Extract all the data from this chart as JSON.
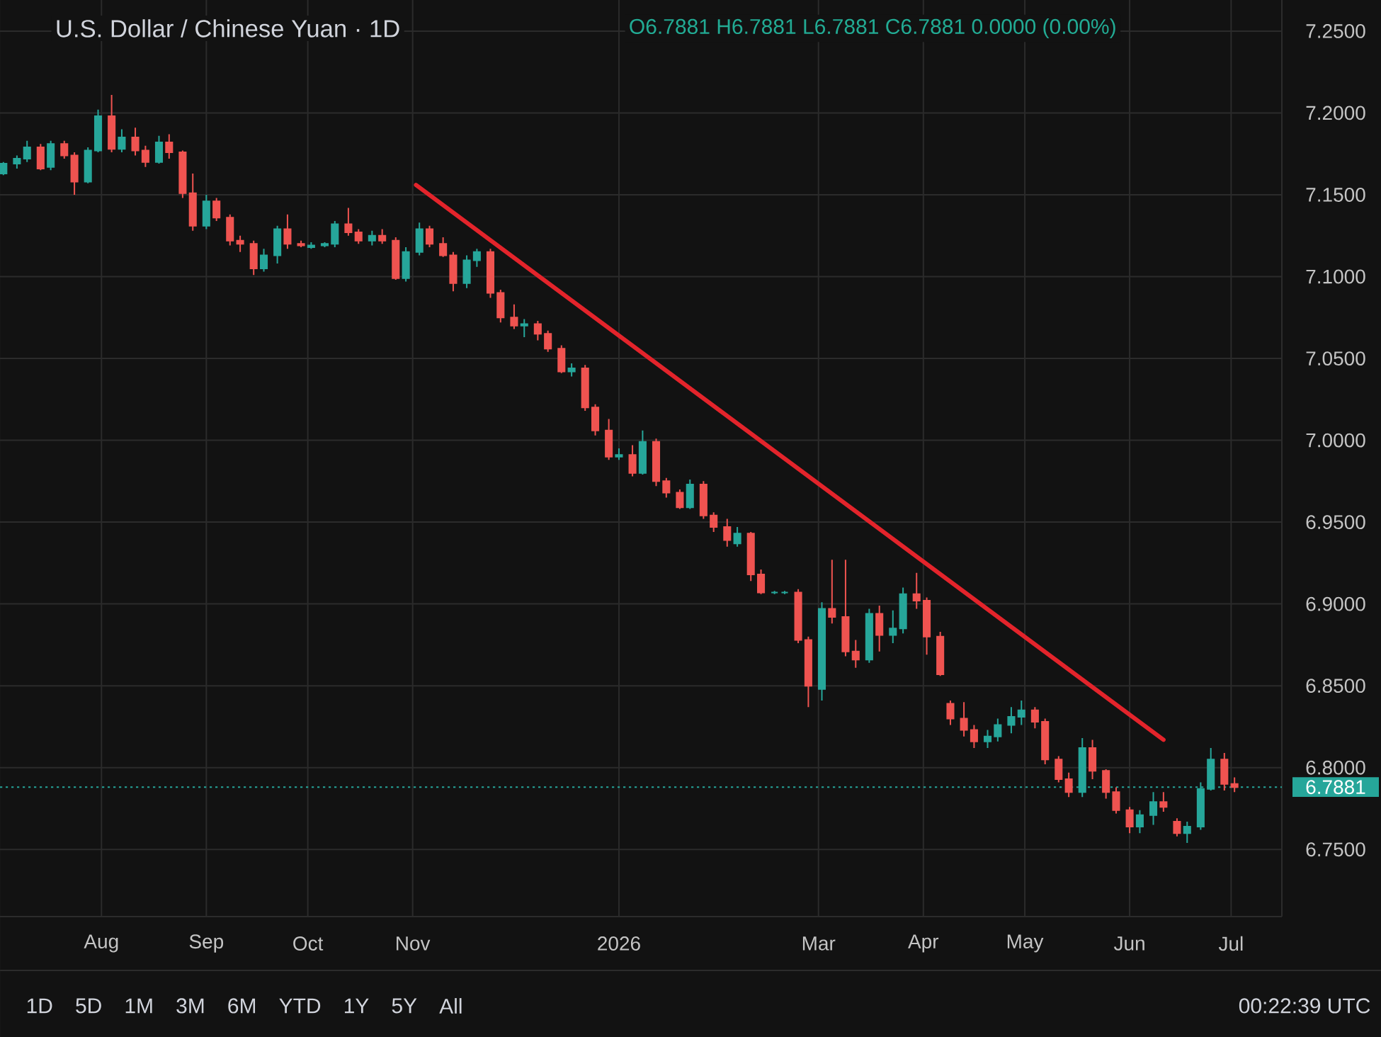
{
  "chart_data": {
    "type": "candlestick",
    "title": "U.S. Dollar / Chinese Yuan · 1D",
    "subtitle": "O6.7881 H6.7881 L6.7881 C6.7881 0.0000 (0.00%)",
    "annotations": [
      "1D",
      "5D",
      "1M",
      "3M",
      "6M",
      "YTD",
      "1Y",
      "5Y",
      "All",
      "00:22:39 UTC"
    ],
    "x": [
      "2025-07-03",
      "2025-07-07",
      "2025-07-10",
      "2025-07-14",
      "2025-07-17",
      "2025-07-21",
      "2025-07-24",
      "2025-07-28",
      "2025-07-31",
      "2025-08-04",
      "2025-08-07",
      "2025-08-11",
      "2025-08-14",
      "2025-08-18",
      "2025-08-21",
      "2025-08-25",
      "2025-08-28",
      "2025-09-01",
      "2025-09-04",
      "2025-09-08",
      "2025-09-11",
      "2025-09-15",
      "2025-09-18",
      "2025-09-22",
      "2025-09-25",
      "2025-09-29",
      "2025-10-02",
      "2025-10-06",
      "2025-10-09",
      "2025-10-13",
      "2025-10-16",
      "2025-10-20",
      "2025-10-23",
      "2025-10-27",
      "2025-10-30",
      "2025-11-03",
      "2025-11-06",
      "2025-11-10",
      "2025-11-13",
      "2025-11-17",
      "2025-11-20",
      "2025-11-24",
      "2025-11-27",
      "2025-12-01",
      "2025-12-04",
      "2025-12-08",
      "2025-12-11",
      "2025-12-15",
      "2025-12-18",
      "2025-12-22",
      "2025-12-25",
      "2025-12-29",
      "2026-01-01",
      "2026-01-05",
      "2026-01-08",
      "2026-01-12",
      "2026-01-15",
      "2026-01-19",
      "2026-01-22",
      "2026-01-26",
      "2026-01-29",
      "2026-02-02",
      "2026-02-05",
      "2026-02-09",
      "2026-02-12",
      "2026-02-16",
      "2026-02-19",
      "2026-02-23",
      "2026-02-26",
      "2026-03-02",
      "2026-03-05",
      "2026-03-09",
      "2026-03-12",
      "2026-03-16",
      "2026-03-19",
      "2026-03-23",
      "2026-03-26",
      "2026-03-30",
      "2026-04-02",
      "2026-04-06",
      "2026-04-09",
      "2026-04-13",
      "2026-04-16",
      "2026-04-20",
      "2026-04-23",
      "2026-04-27",
      "2026-04-30",
      "2026-05-04",
      "2026-05-07",
      "2026-05-11",
      "2026-05-14",
      "2026-05-18",
      "2026-05-21",
      "2026-05-25",
      "2026-05-28",
      "2026-06-01",
      "2026-06-04",
      "2026-06-08",
      "2026-06-11",
      "2026-06-15",
      "2026-06-18",
      "2026-06-22",
      "2026-06-25",
      "2026-06-29",
      "2026-07-02"
    ],
    "ohlc": [
      [
        7.163,
        7.17,
        7.162,
        7.169
      ],
      [
        7.169,
        7.174,
        7.166,
        7.172
      ],
      [
        7.172,
        7.183,
        7.17,
        7.179
      ],
      [
        7.179,
        7.181,
        7.165,
        7.166
      ],
      [
        7.167,
        7.183,
        7.165,
        7.181
      ],
      [
        7.181,
        7.183,
        7.172,
        7.174
      ],
      [
        7.174,
        7.176,
        7.15,
        7.158
      ],
      [
        7.158,
        7.179,
        7.157,
        7.177
      ],
      [
        7.177,
        7.202,
        7.176,
        7.198
      ],
      [
        7.198,
        7.211,
        7.176,
        7.178
      ],
      [
        7.178,
        7.19,
        7.176,
        7.185
      ],
      [
        7.185,
        7.191,
        7.174,
        7.177
      ],
      [
        7.177,
        7.18,
        7.167,
        7.17
      ],
      [
        7.17,
        7.186,
        7.169,
        7.182
      ],
      [
        7.182,
        7.187,
        7.172,
        7.176
      ],
      [
        7.176,
        7.177,
        7.148,
        7.151
      ],
      [
        7.151,
        7.163,
        7.128,
        7.131
      ],
      [
        7.131,
        7.15,
        7.129,
        7.146
      ],
      [
        7.146,
        7.148,
        7.134,
        7.136
      ],
      [
        7.136,
        7.138,
        7.119,
        7.122
      ],
      [
        7.122,
        7.125,
        7.115,
        7.12
      ],
      [
        7.12,
        7.122,
        7.101,
        7.105
      ],
      [
        7.105,
        7.117,
        7.103,
        7.113
      ],
      [
        7.113,
        7.131,
        7.108,
        7.129
      ],
      [
        7.129,
        7.138,
        7.117,
        7.12
      ],
      [
        7.12,
        7.122,
        7.118,
        7.119
      ],
      [
        7.118,
        7.121,
        7.117,
        7.119
      ],
      [
        7.119,
        7.121,
        7.118,
        7.12
      ],
      [
        7.12,
        7.134,
        7.118,
        7.132
      ],
      [
        7.132,
        7.142,
        7.125,
        7.127
      ],
      [
        7.127,
        7.129,
        7.12,
        7.122
      ],
      [
        7.122,
        7.128,
        7.119,
        7.125
      ],
      [
        7.125,
        7.129,
        7.12,
        7.122
      ],
      [
        7.122,
        7.124,
        7.098,
        7.099
      ],
      [
        7.099,
        7.118,
        7.097,
        7.115
      ],
      [
        7.115,
        7.133,
        7.113,
        7.129
      ],
      [
        7.129,
        7.131,
        7.118,
        7.12
      ],
      [
        7.12,
        7.124,
        7.112,
        7.113
      ],
      [
        7.113,
        7.115,
        7.091,
        7.096
      ],
      [
        7.096,
        7.113,
        7.093,
        7.11
      ],
      [
        7.11,
        7.117,
        7.106,
        7.115
      ],
      [
        7.115,
        7.117,
        7.087,
        7.09
      ],
      [
        7.09,
        7.092,
        7.072,
        7.075
      ],
      [
        7.075,
        7.083,
        7.068,
        7.07
      ],
      [
        7.07,
        7.074,
        7.063,
        7.071
      ],
      [
        7.071,
        7.073,
        7.061,
        7.065
      ],
      [
        7.065,
        7.067,
        7.054,
        7.056
      ],
      [
        7.056,
        7.058,
        7.041,
        7.042
      ],
      [
        7.042,
        7.047,
        7.039,
        7.044
      ],
      [
        7.044,
        7.046,
        7.018,
        7.02
      ],
      [
        7.02,
        7.022,
        7.003,
        7.006
      ],
      [
        7.006,
        7.013,
        6.988,
        6.99
      ],
      [
        6.99,
        6.995,
        6.988,
        6.991
      ],
      [
        6.991,
        6.997,
        6.978,
        6.98
      ],
      [
        6.98,
        7.006,
        6.979,
        6.999
      ],
      [
        6.999,
        7.001,
        6.972,
        6.975
      ],
      [
        6.975,
        6.977,
        6.965,
        6.968
      ],
      [
        6.968,
        6.97,
        6.958,
        6.959
      ],
      [
        6.959,
        6.976,
        6.958,
        6.973
      ],
      [
        6.973,
        6.975,
        6.952,
        6.954
      ],
      [
        6.954,
        6.956,
        6.944,
        6.947
      ],
      [
        6.947,
        6.952,
        6.935,
        6.939
      ],
      [
        6.937,
        6.947,
        6.935,
        6.943
      ],
      [
        6.943,
        6.944,
        6.914,
        6.918
      ],
      [
        6.918,
        6.921,
        6.906,
        6.907
      ],
      [
        6.907,
        6.908,
        6.906,
        6.907
      ],
      [
        6.907,
        6.908,
        6.906,
        6.907
      ],
      [
        6.907,
        6.909,
        6.876,
        6.878
      ],
      [
        6.878,
        6.88,
        6.837,
        6.85
      ],
      [
        6.848,
        6.901,
        6.841,
        6.897
      ],
      [
        6.897,
        6.927,
        6.888,
        6.892
      ],
      [
        6.892,
        6.927,
        6.868,
        6.871
      ],
      [
        6.871,
        6.878,
        6.861,
        6.866
      ],
      [
        6.866,
        6.897,
        6.864,
        6.894
      ],
      [
        6.894,
        6.899,
        6.871,
        6.881
      ],
      [
        6.881,
        6.896,
        6.876,
        6.885
      ],
      [
        6.885,
        6.91,
        6.882,
        6.906
      ],
      [
        6.906,
        6.919,
        6.897,
        6.902
      ],
      [
        6.902,
        6.904,
        6.869,
        6.88
      ],
      [
        6.88,
        6.883,
        6.856,
        6.857
      ],
      [
        6.839,
        6.841,
        6.826,
        6.83
      ],
      [
        6.83,
        6.84,
        6.819,
        6.823
      ],
      [
        6.823,
        6.826,
        6.812,
        6.816
      ],
      [
        6.816,
        6.823,
        6.812,
        6.819
      ],
      [
        6.819,
        6.83,
        6.816,
        6.826
      ],
      [
        6.826,
        6.837,
        6.821,
        6.831
      ],
      [
        6.831,
        6.841,
        6.826,
        6.835
      ],
      [
        6.835,
        6.837,
        6.824,
        6.828
      ],
      [
        6.828,
        6.83,
        6.802,
        6.805
      ],
      [
        6.805,
        6.807,
        6.791,
        6.793
      ],
      [
        6.793,
        6.797,
        6.782,
        6.785
      ],
      [
        6.785,
        6.818,
        6.782,
        6.812
      ],
      [
        6.812,
        6.817,
        6.793,
        6.798
      ],
      [
        6.798,
        6.799,
        6.781,
        6.785
      ],
      [
        6.785,
        6.788,
        6.772,
        6.774
      ],
      [
        6.774,
        6.776,
        6.76,
        6.764
      ],
      [
        6.764,
        6.774,
        6.76,
        6.771
      ],
      [
        6.771,
        6.785,
        6.765,
        6.779
      ],
      [
        6.779,
        6.785,
        6.773,
        6.776
      ],
      [
        6.767,
        6.769,
        6.758,
        6.76
      ],
      [
        6.76,
        6.767,
        6.754,
        6.764
      ],
      [
        6.764,
        6.791,
        6.762,
        6.787
      ],
      [
        6.787,
        6.812,
        6.786,
        6.805
      ],
      [
        6.805,
        6.809,
        6.786,
        6.79
      ],
      [
        6.79,
        6.794,
        6.785,
        6.7881
      ]
    ],
    "colors": [
      "#26a69a",
      "#26a69a",
      "#26a69a",
      "#ef5350",
      "#26a69a",
      "#ef5350",
      "#ef5350",
      "#26a69a",
      "#26a69a",
      "#ef5350",
      "#26a69a",
      "#ef5350",
      "#ef5350",
      "#26a69a",
      "#ef5350",
      "#ef5350",
      "#ef5350",
      "#26a69a",
      "#ef5350",
      "#ef5350",
      "#ef5350",
      "#ef5350",
      "#26a69a",
      "#26a69a",
      "#ef5350",
      "#ef5350",
      "#26a69a",
      "#26a69a",
      "#26a69a",
      "#ef5350",
      "#ef5350",
      "#26a69a",
      "#ef5350",
      "#ef5350",
      "#26a69a",
      "#26a69a",
      "#ef5350",
      "#ef5350",
      "#ef5350",
      "#26a69a",
      "#26a69a",
      "#ef5350",
      "#ef5350",
      "#ef5350",
      "#26a69a",
      "#ef5350",
      "#ef5350",
      "#ef5350",
      "#26a69a",
      "#ef5350",
      "#ef5350",
      "#ef5350",
      "#26a69a",
      "#ef5350",
      "#26a69a",
      "#ef5350",
      "#ef5350",
      "#ef5350",
      "#26a69a",
      "#ef5350",
      "#ef5350",
      "#ef5350",
      "#26a69a",
      "#ef5350",
      "#ef5350",
      "#26a69a",
      "#26a69a",
      "#ef5350",
      "#ef5350",
      "#26a69a",
      "#ef5350",
      "#ef5350",
      "#ef5350",
      "#26a69a",
      "#ef5350",
      "#26a69a",
      "#26a69a",
      "#ef5350",
      "#ef5350",
      "#ef5350",
      "#ef5350",
      "#ef5350",
      "#ef5350",
      "#26a69a",
      "#26a69a",
      "#26a69a",
      "#26a69a",
      "#ef5350",
      "#ef5350",
      "#ef5350",
      "#ef5350",
      "#26a69a",
      "#ef5350",
      "#ef5350",
      "#ef5350",
      "#ef5350",
      "#26a69a",
      "#26a69a",
      "#ef5350",
      "#ef5350",
      "#26a69a",
      "#26a69a",
      "#26a69a",
      "#ef5350",
      "#ef5350"
    ],
    "series": [
      {
        "type": "line",
        "color": "#e3242b",
        "x": [
          "2025-11-02",
          "2026-06-11"
        ],
        "values": [
          7.156,
          6.817
        ]
      }
    ],
    "ref_lines": [
      {
        "axis": "y",
        "value": 6.7881,
        "label": "6.7881",
        "color": "#26a69a",
        "line_style": "dotted"
      }
    ],
    "xlim": [
      "2025-07-02",
      "2026-07-16"
    ],
    "ylim": [
      6.709,
      7.269
    ],
    "xticks": [
      {
        "value": "2025-08-01",
        "label": "Aug"
      },
      {
        "value": "2025-09-01",
        "label": "Sep"
      },
      {
        "value": "2025-10-01",
        "label": "Oct"
      },
      {
        "value": "2025-11-01",
        "label": "Nov"
      },
      {
        "value": "2026-01-01",
        "label": "2026"
      },
      {
        "value": "2026-03-01",
        "label": "Mar"
      },
      {
        "value": "2026-04-01",
        "label": "Apr"
      },
      {
        "value": "2026-05-01",
        "label": "May"
      },
      {
        "value": "2026-06-01",
        "label": "Jun"
      },
      {
        "value": "2026-07-01",
        "label": "Jul"
      }
    ],
    "yticks": [
      {
        "value": 6.75,
        "label": "6.7500"
      },
      {
        "value": 6.8,
        "label": "6.8000"
      },
      {
        "value": 6.85,
        "label": "6.8500"
      },
      {
        "value": 6.9,
        "label": "6.9000"
      },
      {
        "value": 6.95,
        "label": "6.9500"
      },
      {
        "value": 7.0,
        "label": "7.0000"
      },
      {
        "value": 7.05,
        "label": "7.0500"
      },
      {
        "value": 7.1,
        "label": "7.1000"
      },
      {
        "value": 7.15,
        "label": "7.1500"
      },
      {
        "value": 7.2,
        "label": "7.2000"
      },
      {
        "value": 7.25,
        "label": "7.2500"
      }
    ],
    "grid": true
  }
}
